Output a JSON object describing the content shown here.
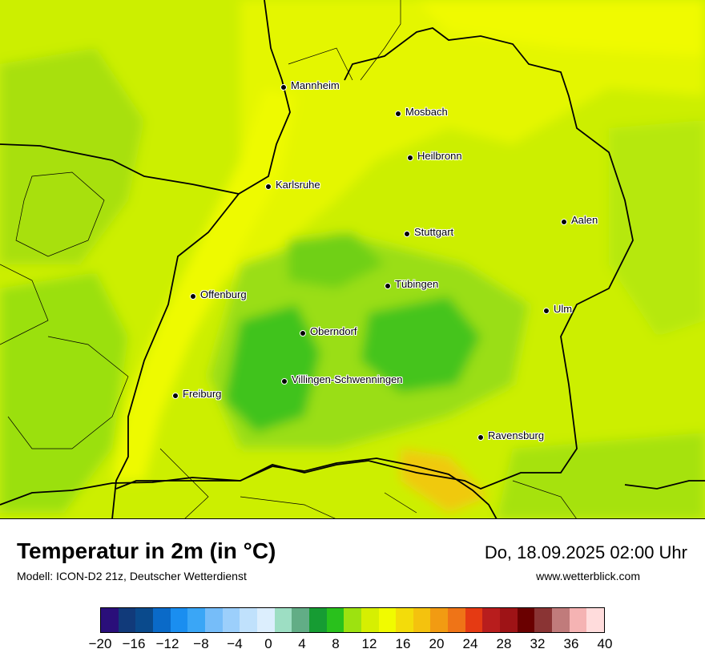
{
  "map": {
    "cities": [
      {
        "name": "Mannheim"
      },
      {
        "name": "Mosbach"
      },
      {
        "name": "Heilbronn"
      },
      {
        "name": "Karlsruhe"
      },
      {
        "name": "Aalen"
      },
      {
        "name": "Stuttgart"
      },
      {
        "name": "Tübingen"
      },
      {
        "name": "Offenburg"
      },
      {
        "name": "Ulm"
      },
      {
        "name": "Oberndorf"
      },
      {
        "name": "Villingen-Schwenningen"
      },
      {
        "name": "Freiburg"
      },
      {
        "name": "Ravensburg"
      }
    ]
  },
  "footer": {
    "title": "Temperatur in 2m (in °C)",
    "model": "Modell: ICON-D2 21z, Deutscher Wetterdienst",
    "datetime": "Do, 18.09.2025 02:00 Uhr",
    "site": "www.wetterblick.com"
  },
  "legend": {
    "colors": [
      "#2a0f7a",
      "#113a7a",
      "#0a4a8c",
      "#0a6ac8",
      "#1a8ef0",
      "#3aa6f6",
      "#76bdf9",
      "#9ccffb",
      "#c0e1fc",
      "#dceefd",
      "#9ddec3",
      "#62ad86",
      "#169c33",
      "#29c11c",
      "#9de210",
      "#d6ef02",
      "#f1fb00",
      "#f3dc0a",
      "#f4c20e",
      "#f29b12",
      "#ef7417",
      "#e53a13",
      "#b81d1d",
      "#9e1316",
      "#6a0000",
      "#8a3434",
      "#c07b7b",
      "#f5b3b3",
      "#ffdcdc"
    ],
    "ticks": [
      "−20",
      "−16",
      "−12",
      "−8",
      "−4",
      "0",
      "4",
      "8",
      "12",
      "16",
      "20",
      "24",
      "28",
      "32",
      "36",
      "40"
    ]
  }
}
